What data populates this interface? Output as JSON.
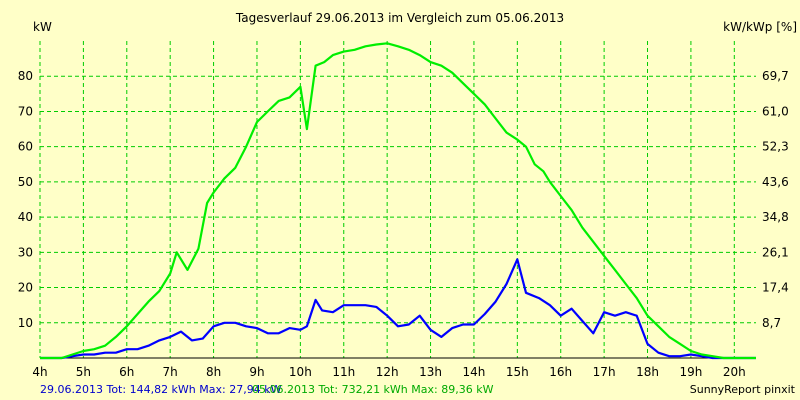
{
  "chart_data": {
    "type": "line",
    "title": "Tagesverlauf 29.06.2013 im Vergleich zum 05.06.2013",
    "ylabel_left": "kW",
    "ylabel_right": "kW/kWp [%]",
    "xlim": [
      4,
      20.5
    ],
    "ylim": [
      0,
      90
    ],
    "x_ticks": [
      4,
      5,
      6,
      7,
      8,
      9,
      10,
      11,
      12,
      13,
      14,
      15,
      16,
      17,
      18,
      19,
      20
    ],
    "x_tick_labels": [
      "4h",
      "5h",
      "6h",
      "7h",
      "8h",
      "9h",
      "10h",
      "11h",
      "12h",
      "13h",
      "14h",
      "15h",
      "16h",
      "17h",
      "18h",
      "19h",
      "20h"
    ],
    "y_ticks": [
      10,
      20,
      30,
      40,
      50,
      60,
      70,
      80
    ],
    "y_tick_labels": [
      "10",
      "20",
      "30",
      "40",
      "50",
      "60",
      "70",
      "80"
    ],
    "y2_ticks": [
      "8,7",
      "17,4",
      "26,1",
      "34,8",
      "43,6",
      "52,3",
      "61,0",
      "69,7"
    ],
    "grid": true,
    "grid_color": "#00cc00",
    "background": "#ffffc8",
    "series": [
      {
        "color": "#0000ff",
        "x": [
          4,
          4.5,
          4.75,
          5,
          5.25,
          5.5,
          5.75,
          6,
          6.25,
          6.5,
          6.75,
          7,
          7.25,
          7.5,
          7.75,
          8,
          8.25,
          8.5,
          8.75,
          9,
          9.25,
          9.5,
          9.75,
          10,
          10.15,
          10.35,
          10.5,
          10.75,
          11,
          11.25,
          11.5,
          11.75,
          12,
          12.25,
          12.5,
          12.75,
          13,
          13.25,
          13.5,
          13.75,
          14,
          14.25,
          14.5,
          14.75,
          15,
          15.2,
          15.5,
          15.75,
          16,
          16.25,
          16.5,
          16.75,
          17,
          17.25,
          17.5,
          17.75,
          18,
          18.25,
          18.5,
          18.75,
          19,
          19.25,
          19.5,
          19.75,
          20,
          20.5
        ],
        "values": [
          0,
          0,
          0.5,
          1,
          1,
          1.5,
          1.5,
          2.5,
          2.5,
          3.5,
          5,
          6,
          7.5,
          5,
          5.5,
          9,
          10,
          10,
          9,
          8.5,
          7,
          7,
          8.5,
          8,
          9,
          16.5,
          13.5,
          13,
          15,
          15,
          15,
          14.5,
          12,
          9,
          9.5,
          12,
          8,
          6,
          8.5,
          9.5,
          9.5,
          12.5,
          16,
          21,
          28,
          18.5,
          17,
          15,
          12,
          14,
          10.5,
          7,
          13,
          12,
          13,
          12,
          4,
          1.5,
          0.5,
          0.5,
          1,
          0.5,
          0,
          0,
          0,
          0
        ]
      },
      {
        "color": "#00ee00",
        "x": [
          4,
          4.5,
          4.75,
          5,
          5.25,
          5.5,
          5.75,
          6,
          6.25,
          6.5,
          6.75,
          7,
          7.15,
          7.4,
          7.65,
          7.85,
          8,
          8.25,
          8.5,
          8.75,
          9,
          9.25,
          9.5,
          9.75,
          10,
          10.15,
          10.35,
          10.55,
          10.75,
          11,
          11.25,
          11.5,
          11.75,
          12,
          12.25,
          12.5,
          12.75,
          13,
          13.25,
          13.5,
          13.75,
          14,
          14.25,
          14.5,
          14.75,
          15,
          15.2,
          15.4,
          15.6,
          15.75,
          16,
          16.25,
          16.5,
          16.75,
          17,
          17.25,
          17.5,
          17.75,
          18,
          18.25,
          18.5,
          18.75,
          19,
          19.25,
          19.5,
          19.75,
          20,
          20.5
        ],
        "values": [
          0,
          0,
          1,
          2,
          2.5,
          3.5,
          6,
          9,
          12.5,
          16,
          19,
          24,
          30,
          25,
          31,
          44,
          47,
          51,
          54,
          60,
          67,
          70,
          73,
          74,
          77,
          65,
          83,
          84,
          86,
          87,
          87.5,
          88.5,
          89,
          89.36,
          88.5,
          87.5,
          86,
          84,
          83,
          81,
          78,
          75,
          72,
          68,
          64,
          62,
          60,
          55,
          53,
          50,
          46,
          42,
          37,
          33,
          29,
          25,
          21,
          17,
          12,
          9,
          6,
          4,
          2,
          1,
          0.5,
          0,
          0,
          0
        ]
      }
    ],
    "footer": {
      "series1_label": "29.06.2013 Tot: 144,82 kWh Max: 27,94 kW",
      "series2_label": "05.06.2013 Tot: 732,21 kWh Max: 89,36 kW",
      "credit": "SunnyReport pinxit"
    }
  }
}
